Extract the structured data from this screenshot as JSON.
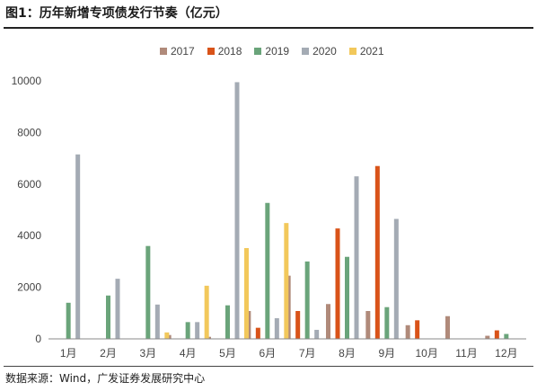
{
  "title": "图1：历年新增专项债发行节奏（亿元）",
  "source": "数据来源：Wind，广发证券发展研究中心",
  "colors": {
    "2017": "#b08a7a",
    "2018": "#d95319",
    "2019": "#6aa47a",
    "2020": "#a4abb4",
    "2021": "#f2c85b"
  },
  "chart_data": {
    "type": "bar",
    "title": "历年新增专项债发行节奏（亿元）",
    "categories": [
      "1月",
      "2月",
      "3月",
      "4月",
      "5月",
      "6月",
      "7月",
      "8月",
      "9月",
      "10月",
      "11月",
      "12月"
    ],
    "ylim": [
      0,
      10000
    ],
    "yticks": [
      0,
      2000,
      4000,
      6000,
      8000,
      10000
    ],
    "grid": false,
    "legend": "top",
    "series": [
      {
        "name": "2017",
        "values": [
          0,
          0,
          0,
          150,
          80,
          1080,
          2450,
          1350,
          1080,
          530,
          880,
          120
        ]
      },
      {
        "name": "2018",
        "values": [
          0,
          0,
          0,
          0,
          0,
          430,
          1080,
          4280,
          6700,
          720,
          0,
          330
        ]
      },
      {
        "name": "2019",
        "values": [
          1400,
          1680,
          3600,
          650,
          1300,
          5270,
          3000,
          3180,
          1230,
          0,
          0,
          190
        ]
      },
      {
        "name": "2020",
        "values": [
          7150,
          2330,
          1330,
          650,
          9950,
          800,
          350,
          6300,
          4650,
          0,
          0,
          0
        ]
      },
      {
        "name": "2021",
        "values": [
          0,
          0,
          250,
          2060,
          3520,
          4490,
          0,
          0,
          0,
          0,
          0,
          0
        ]
      }
    ]
  }
}
